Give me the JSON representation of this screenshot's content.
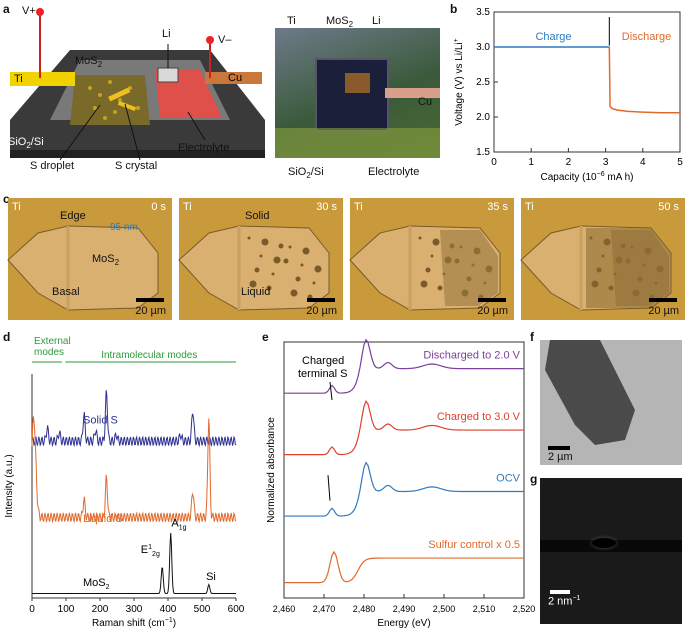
{
  "panels": {
    "a": "a",
    "b": "b",
    "c": "c",
    "d": "d",
    "e": "e",
    "f": "f",
    "g": "g"
  },
  "panel_a": {
    "v_plus": "V+",
    "v_minus": "V–",
    "mos2": "MoS",
    "mos2_sub": "2",
    "li": "Li",
    "ti": "Ti",
    "cu": "Cu",
    "sio2_si": "SiO",
    "sio2_sub": "2",
    "sio2_rest": "/Si",
    "s_droplet": "S droplet",
    "s_crystal": "S crystal",
    "electrolyte": "Electrolyte",
    "photo_ti": "Ti",
    "photo_mos2": "MoS",
    "photo_mos2_sub": "2",
    "photo_li": "Li",
    "photo_cu": "Cu",
    "photo_sio2": "SiO",
    "photo_sio2_sub": "2",
    "photo_sio2_rest": "/Si",
    "photo_electrolyte": "Electrolyte"
  },
  "panel_c": {
    "frames": [
      {
        "ti": "Ti",
        "time": "0 s",
        "scalebar": "20 µm"
      },
      {
        "ti": "Ti",
        "time": "30 s",
        "scalebar": "20 µm"
      },
      {
        "ti": "Ti",
        "time": "35 s",
        "scalebar": "20 µm"
      },
      {
        "ti": "Ti",
        "time": "50 s",
        "scalebar": "20 µm"
      }
    ],
    "edge": "Edge",
    "thickness": "95 nm",
    "mos2": "MoS",
    "mos2_sub": "2",
    "basal": "Basal",
    "solid": "Solid",
    "liquid": "Liquid"
  },
  "panel_f": {
    "scalebar": "2 µm"
  },
  "panel_g": {
    "scalebar": "2 nm",
    "scalebar_sup": "−1"
  },
  "chart_data": [
    {
      "id": "b",
      "type": "line",
      "xlabel": "Capacity (10",
      "xlabel_sup": "−6",
      "xlabel_rest": " mA h)",
      "ylabel": "Voltage (V) vs Li/Li",
      "ylabel_sup": "+",
      "xlim": [
        0,
        5
      ],
      "ylim": [
        1.5,
        3.5
      ],
      "xticks": [
        "0",
        "1",
        "2",
        "3",
        "4",
        "5"
      ],
      "yticks": [
        "1.5",
        "2.0",
        "2.5",
        "3.0",
        "3.5"
      ],
      "series": [
        {
          "name": "Charge",
          "color": "#2f7bbf",
          "x": [
            0,
            3.1
          ],
          "y": [
            3.0,
            3.0
          ]
        },
        {
          "name": "Discharge",
          "color": "#e06a2c",
          "x": [
            3.1,
            3.12,
            3.18,
            3.3,
            3.6,
            4.0,
            4.5,
            5.0
          ],
          "y": [
            3.0,
            2.15,
            2.12,
            2.1,
            2.08,
            2.07,
            2.06,
            2.06
          ]
        }
      ]
    },
    {
      "id": "d",
      "type": "line",
      "xlabel": "Raman shift (cm",
      "xlabel_sup": "−1",
      "xlabel_rest": ")",
      "ylabel": "Intensity (a.u.)",
      "xlim": [
        0,
        600
      ],
      "xticks": [
        "0",
        "100",
        "200",
        "300",
        "400",
        "500",
        "600"
      ],
      "external": "External",
      "external2": "modes",
      "intramolecular": "Intramolecular modes",
      "series": [
        {
          "name": "Solid S",
          "color": "#2e3192",
          "offset": 0.7,
          "peaks": [
            [
              45,
              0.06
            ],
            [
              80,
              0.04
            ],
            [
              153,
              0.12
            ],
            [
              187,
              0.05
            ],
            [
              219,
              0.22
            ],
            [
              248,
              0.03
            ],
            [
              437,
              0.03
            ],
            [
              473,
              0.14
            ]
          ]
        },
        {
          "name": "Liquid S",
          "color": "#e06a2c",
          "offset": 0.36,
          "peaks": [
            [
              5,
              0.45
            ],
            [
              153,
              0.08
            ],
            [
              219,
              0.18
            ],
            [
              473,
              0.12
            ],
            [
              520,
              0.45
            ]
          ]
        },
        {
          "name": "MoS2",
          "color": "#111",
          "offset": 0.02,
          "peaks": [
            [
              383,
              0.12
            ],
            [
              408,
              0.27
            ],
            [
              520,
              0.04
            ]
          ]
        }
      ],
      "annotations": {
        "mos2": "MoS",
        "mos2_sub": "2",
        "e2g": "E",
        "e2g_sup": "1",
        "e2g_sub": "2g",
        "a1g": "A",
        "a1g_sub": "1g",
        "si": "Si"
      }
    },
    {
      "id": "e",
      "type": "line",
      "xlabel": "Energy (eV)",
      "ylabel": "Normalized absorbance",
      "xlim": [
        2460,
        2520
      ],
      "xticks": [
        "2,460",
        "2,470",
        "2,480",
        "2,490",
        "2,500",
        "2,510",
        "2,520"
      ],
      "charged_terminal": "Charged",
      "charged_terminal2": "terminal S",
      "series": [
        {
          "name": "Discharged to 2.0 V",
          "color": "#7b3fa0",
          "offset": 0.8
        },
        {
          "name": "Charged to 3.0 V",
          "color": "#e0402c",
          "offset": 0.56
        },
        {
          "name": "OCV",
          "color": "#2f7bbf",
          "offset": 0.32
        },
        {
          "name": "Sulfur control x 0.5",
          "color": "#e06a2c",
          "offset": 0.06
        }
      ]
    }
  ]
}
